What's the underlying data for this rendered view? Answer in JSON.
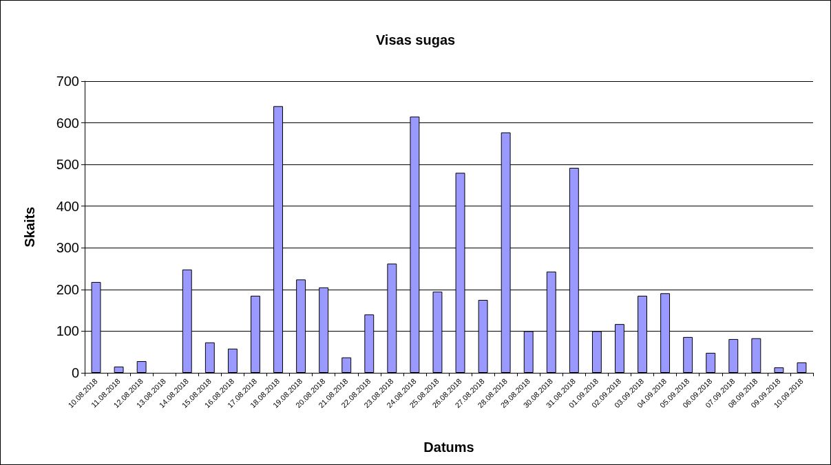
{
  "chart_data": {
    "type": "bar",
    "title": "Visas sugas",
    "xlabel": "Datums",
    "ylabel": "Skaits",
    "categories": [
      "10.08.2018",
      "11.08.2018",
      "12.08.2018",
      "13.08.2018",
      "14.08.2018",
      "15.08.2018",
      "16.08.2018",
      "17.08.2018",
      "18.08.2018",
      "19.08.2018",
      "20.08.2018",
      "21.08.2018",
      "22.08.2018",
      "23.08.2018",
      "24.08.2018",
      "25.08.2018",
      "26.08.2018",
      "27.08.2018",
      "28.08.2018",
      "29.08.2018",
      "30.08.2018",
      "31.08.2018",
      "01.09.2018",
      "02.09.2018",
      "03.09.2018",
      "04.09.2018",
      "05.09.2018",
      "06.09.2018",
      "07.09.2018",
      "08.09.2018",
      "09.09.2018",
      "10.09.2018"
    ],
    "values": [
      218,
      15,
      28,
      0,
      248,
      73,
      58,
      185,
      640,
      224,
      205,
      37,
      140,
      262,
      615,
      195,
      480,
      175,
      577,
      100,
      243,
      492,
      100,
      117,
      185,
      191,
      86,
      48,
      81,
      83,
      13,
      25
    ],
    "color": "#9999ff",
    "ylim": [
      0,
      700
    ],
    "yticks": [
      0,
      100,
      200,
      300,
      400,
      500,
      600,
      700
    ],
    "grid": "y"
  }
}
